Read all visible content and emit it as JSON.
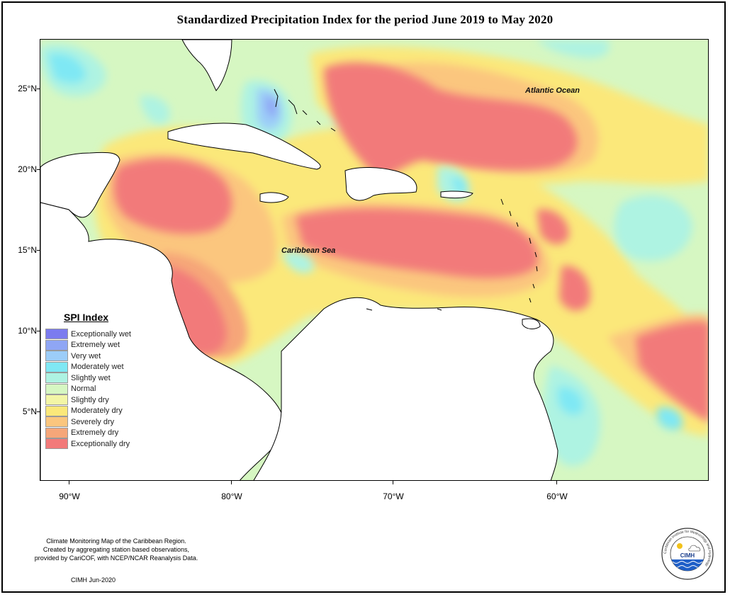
{
  "title": "Standardized Precipitation Index for the period June 2019 to May 2020",
  "axes": {
    "y_labels": [
      "25°N",
      "20°N",
      "15°N",
      "10°N",
      "5°N"
    ],
    "x_labels": [
      "90°W",
      "80°W",
      "70°W",
      "60°W"
    ]
  },
  "map_labels": {
    "atlantic": "Atlantic Ocean",
    "caribbean": "Caribbean Sea"
  },
  "legend": {
    "title": "SPI Index",
    "items": [
      {
        "label": "Exceptionally wet",
        "color": "#7b7bef"
      },
      {
        "label": "Extremely wet",
        "color": "#8fa6f5"
      },
      {
        "label": "Very wet",
        "color": "#9ccdf8"
      },
      {
        "label": "Moderately wet",
        "color": "#7fe8f4"
      },
      {
        "label": "Slightly wet",
        "color": "#aef3e2"
      },
      {
        "label": "Normal",
        "color": "#d6f7c2"
      },
      {
        "label": "Slightly dry",
        "color": "#f3f6a6"
      },
      {
        "label": "Moderately dry",
        "color": "#fbe87a"
      },
      {
        "label": "Severely dry",
        "color": "#fbc67e"
      },
      {
        "label": "Extremely dry",
        "color": "#f6a679"
      },
      {
        "label": "Exceptionally dry",
        "color": "#f27a7a"
      }
    ]
  },
  "footnote": [
    "Climate Monitoring Map of the Caribbean Region.",
    "Created by aggregating station based observations,",
    "provided by CariCOF, with NCEP/NCAR Reanalysis Data."
  ],
  "credit": "CIMH Jun-2020",
  "logo": {
    "text": "CIMH",
    "ring_text": "Caribbean Institute for Meteorology and Hydrology"
  }
}
